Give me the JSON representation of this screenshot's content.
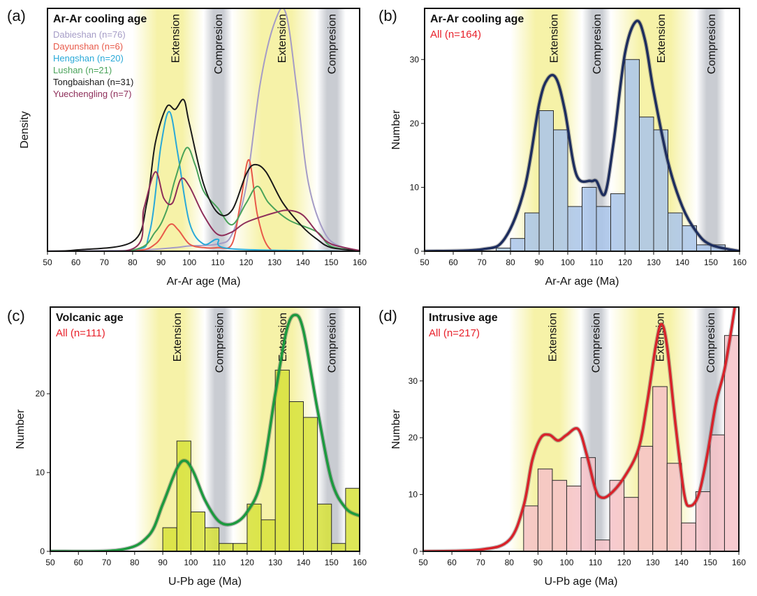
{
  "chart_data": [
    {
      "panel": "(a)",
      "type": "line",
      "title": "Ar-Ar cooling age",
      "xlabel": "Ar-Ar age (Ma)",
      "ylabel": "Density",
      "xlim": [
        50,
        160
      ],
      "xticks": [
        "50",
        "60",
        "70",
        "80",
        "90",
        "100",
        "110",
        "120",
        "130",
        "140",
        "150",
        "160"
      ],
      "yticks": [],
      "bands": [
        {
          "label": "Extension",
          "from": 80,
          "to": 105,
          "color": "#f6f2a8"
        },
        {
          "label": "Compresion",
          "from": 105,
          "to": 115,
          "color": "#c9ccd2"
        },
        {
          "label": "Extension",
          "from": 115,
          "to": 145,
          "color": "#f6f2a8"
        },
        {
          "label": "Compresion",
          "from": 145,
          "to": 155,
          "color": "#c9ccd2"
        }
      ],
      "legend": [
        {
          "label": "Dabieshan (n=76)",
          "color": "#a59cc6"
        },
        {
          "label": "Dayunshan (n=6)",
          "color": "#e85a4a"
        },
        {
          "label": "Hengshan (n=20)",
          "color": "#29a9d8"
        },
        {
          "label": "Lushan (n=21)",
          "color": "#4aa35a"
        },
        {
          "label": "Tongbaishan (n=31)",
          "color": "#1a1a1a"
        },
        {
          "label": "Yuechengling (n=7)",
          "color": "#8e2e5a"
        }
      ],
      "series": [
        {
          "name": "Dabieshan (n=76)",
          "color": "#a59cc6",
          "x": [
            50,
            70,
            85,
            95,
            100,
            110,
            115,
            120,
            125,
            130,
            134,
            138,
            142,
            148,
            155,
            160
          ],
          "y": [
            0.1,
            0.2,
            0.6,
            1.5,
            2.2,
            3.0,
            7.0,
            27,
            70,
            95,
            99,
            66,
            28,
            7,
            1.2,
            0.2
          ]
        },
        {
          "name": "Dayunshan (n=6)",
          "color": "#e85a4a",
          "x": [
            50,
            80,
            88,
            93,
            96,
            100,
            105,
            110,
            115,
            118,
            121,
            124,
            128,
            135,
            160
          ],
          "y": [
            0,
            0.2,
            3,
            11,
            9,
            3,
            1.5,
            1.5,
            3,
            20,
            38,
            15,
            1.5,
            0.3,
            0
          ]
        },
        {
          "name": "Hengshan (n=20)",
          "color": "#29a9d8",
          "x": [
            50,
            80,
            86,
            90,
            93,
            96,
            100,
            105,
            110,
            115,
            160
          ],
          "y": [
            0,
            0.5,
            8,
            44,
            58,
            40,
            12,
            3,
            5,
            1,
            0
          ]
        },
        {
          "name": "Lushan (n=21)",
          "color": "#4aa35a",
          "x": [
            50,
            80,
            88,
            92,
            95,
            99,
            102,
            105,
            110,
            115,
            120,
            124,
            128,
            135,
            145,
            150,
            160
          ],
          "y": [
            0,
            0.5,
            8,
            17,
            30,
            43,
            36,
            25,
            18,
            11,
            20,
            27,
            20,
            13,
            8,
            2,
            0.2
          ]
        },
        {
          "name": "Tongbaishan (n=31)",
          "color": "#1a1a1a",
          "x": [
            50,
            60,
            80,
            85,
            88,
            92,
            95,
            98,
            100,
            105,
            110,
            115,
            120,
            123,
            127,
            133,
            140,
            145,
            150,
            160
          ],
          "y": [
            0,
            0.5,
            4,
            20,
            45,
            60,
            59,
            63,
            53,
            28,
            16,
            17,
            32,
            36,
            33,
            20,
            10,
            5,
            1.5,
            0.2
          ]
        },
        {
          "name": "Yuechengling (n=7)",
          "color": "#8e2e5a",
          "x": [
            50,
            80,
            84,
            88,
            91,
            94,
            97,
            100,
            105,
            110,
            115,
            120,
            130,
            135,
            140,
            145,
            150,
            160
          ],
          "y": [
            0,
            1,
            18,
            33,
            22,
            20,
            30,
            27,
            15,
            7,
            8,
            12,
            16,
            17,
            15,
            8,
            3,
            0.3
          ]
        }
      ]
    },
    {
      "panel": "(b)",
      "type": "bar",
      "title": "Ar-Ar cooling age",
      "subtitle": "All (n=164)",
      "xlabel": "Ar-Ar age (Ma)",
      "ylabel": "Number",
      "xlim": [
        50,
        160
      ],
      "ylim": [
        0,
        38
      ],
      "xticks": [
        "50",
        "60",
        "70",
        "80",
        "90",
        "100",
        "110",
        "120",
        "130",
        "140",
        "150",
        "160"
      ],
      "yticks": [
        "0",
        "10",
        "20",
        "30"
      ],
      "bands": [
        {
          "label": "Extension",
          "from": 80,
          "to": 105,
          "color": "#f6f2a8"
        },
        {
          "label": "Compresion",
          "from": 105,
          "to": 115,
          "color": "#c9ccd2"
        },
        {
          "label": "Extension",
          "from": 115,
          "to": 145,
          "color": "#f6f2a8"
        },
        {
          "label": "Compresion",
          "from": 145,
          "to": 155,
          "color": "#c9ccd2"
        }
      ],
      "bar_color": "#a9c4ea",
      "line_color": "#1d2d5e",
      "bins": [
        {
          "from": 75,
          "to": 80,
          "value": 0.5
        },
        {
          "from": 80,
          "to": 85,
          "value": 2
        },
        {
          "from": 85,
          "to": 90,
          "value": 6
        },
        {
          "from": 90,
          "to": 95,
          "value": 22
        },
        {
          "from": 95,
          "to": 100,
          "value": 19
        },
        {
          "from": 100,
          "to": 105,
          "value": 7
        },
        {
          "from": 105,
          "to": 110,
          "value": 10
        },
        {
          "from": 110,
          "to": 115,
          "value": 7
        },
        {
          "from": 115,
          "to": 120,
          "value": 9
        },
        {
          "from": 120,
          "to": 125,
          "value": 30
        },
        {
          "from": 125,
          "to": 130,
          "value": 21
        },
        {
          "from": 130,
          "to": 135,
          "value": 19
        },
        {
          "from": 135,
          "to": 140,
          "value": 6
        },
        {
          "from": 140,
          "to": 145,
          "value": 4
        },
        {
          "from": 145,
          "to": 150,
          "value": 1
        },
        {
          "from": 150,
          "to": 155,
          "value": 1
        }
      ],
      "curve": {
        "x": [
          50,
          70,
          78,
          85,
          90,
          93,
          96,
          99,
          103,
          108,
          110,
          113,
          116,
          120,
          124,
          127,
          130,
          135,
          140,
          145,
          150,
          160
        ],
        "y": [
          0,
          0.3,
          2,
          10,
          23,
          27,
          27,
          22,
          12,
          11,
          11,
          9,
          17,
          31,
          36,
          33,
          25,
          14,
          7,
          3,
          1,
          0
        ]
      }
    },
    {
      "panel": "(c)",
      "type": "bar",
      "title": "Volcanic age",
      "subtitle": "All (n=111)",
      "xlabel": "U-Pb age (Ma)",
      "ylabel": "Number",
      "xlim": [
        50,
        160
      ],
      "ylim": [
        0,
        31
      ],
      "xticks": [
        "50",
        "60",
        "70",
        "80",
        "90",
        "100",
        "110",
        "120",
        "130",
        "140",
        "150",
        "160"
      ],
      "yticks": [
        "0",
        "10",
        "20"
      ],
      "bands": [
        {
          "label": "Extension",
          "from": 80,
          "to": 105,
          "color": "#f6f2a8"
        },
        {
          "label": "Compresion",
          "from": 105,
          "to": 115,
          "color": "#c9ccd2"
        },
        {
          "label": "Extension",
          "from": 115,
          "to": 145,
          "color": "#f6f2a8"
        },
        {
          "label": "Compresion",
          "from": 145,
          "to": 155,
          "color": "#c9ccd2"
        }
      ],
      "bar_color": "#d7e23a",
      "line_color": "#1c9a3e",
      "bins": [
        {
          "from": 90,
          "to": 95,
          "value": 3
        },
        {
          "from": 95,
          "to": 100,
          "value": 14
        },
        {
          "from": 100,
          "to": 105,
          "value": 5
        },
        {
          "from": 105,
          "to": 110,
          "value": 3
        },
        {
          "from": 110,
          "to": 115,
          "value": 1
        },
        {
          "from": 115,
          "to": 120,
          "value": 1
        },
        {
          "from": 120,
          "to": 125,
          "value": 6
        },
        {
          "from": 125,
          "to": 130,
          "value": 4
        },
        {
          "from": 130,
          "to": 135,
          "value": 23
        },
        {
          "from": 135,
          "to": 140,
          "value": 19
        },
        {
          "from": 140,
          "to": 145,
          "value": 17
        },
        {
          "from": 145,
          "to": 150,
          "value": 6
        },
        {
          "from": 150,
          "to": 155,
          "value": 1
        },
        {
          "from": 155,
          "to": 160,
          "value": 8
        }
      ],
      "curve": {
        "x": [
          50,
          75,
          85,
          90,
          95,
          98,
          101,
          105,
          110,
          115,
          120,
          125,
          130,
          134,
          137,
          140,
          145,
          150,
          155,
          160
        ],
        "y": [
          0,
          0.2,
          2,
          6,
          10.5,
          11.5,
          10,
          6.5,
          3.8,
          3.5,
          5,
          9,
          20,
          28,
          30,
          28,
          18,
          9,
          5.5,
          4.5
        ]
      }
    },
    {
      "panel": "(d)",
      "type": "bar",
      "title": "Intrusive age",
      "subtitle": "All (n=217)",
      "xlabel": "U-Pb age (Ma)",
      "ylabel": "Number",
      "xlim": [
        50,
        160
      ],
      "ylim": [
        0,
        43
      ],
      "xticks": [
        "50",
        "60",
        "70",
        "80",
        "90",
        "100",
        "110",
        "120",
        "130",
        "140",
        "150",
        "160"
      ],
      "yticks": [
        "0",
        "10",
        "20",
        "30"
      ],
      "bands": [
        {
          "label": "Extension",
          "from": 80,
          "to": 105,
          "color": "#f6f2a8"
        },
        {
          "label": "Compresion",
          "from": 105,
          "to": 115,
          "color": "#c9ccd2"
        },
        {
          "label": "Extension",
          "from": 115,
          "to": 145,
          "color": "#f6f2a8"
        },
        {
          "label": "Compresion",
          "from": 145,
          "to": 155,
          "color": "#c9ccd2"
        }
      ],
      "bar_color": "#f6c2c8",
      "line_color": "#d8222a",
      "bins": [
        {
          "from": 85,
          "to": 90,
          "value": 8
        },
        {
          "from": 90,
          "to": 95,
          "value": 14.5
        },
        {
          "from": 95,
          "to": 100,
          "value": 12.5
        },
        {
          "from": 100,
          "to": 105,
          "value": 11.5
        },
        {
          "from": 105,
          "to": 110,
          "value": 16.5
        },
        {
          "from": 110,
          "to": 115,
          "value": 2
        },
        {
          "from": 115,
          "to": 120,
          "value": 12.5
        },
        {
          "from": 120,
          "to": 125,
          "value": 9.5
        },
        {
          "from": 125,
          "to": 130,
          "value": 18.5
        },
        {
          "from": 130,
          "to": 135,
          "value": 29
        },
        {
          "from": 135,
          "to": 140,
          "value": 15.5
        },
        {
          "from": 140,
          "to": 145,
          "value": 5
        },
        {
          "from": 145,
          "to": 150,
          "value": 10.5
        },
        {
          "from": 150,
          "to": 155,
          "value": 20.5
        },
        {
          "from": 155,
          "to": 160,
          "value": 38
        }
      ],
      "curve": {
        "x": [
          50,
          70,
          80,
          85,
          88,
          91,
          94,
          97,
          100,
          104,
          107,
          110,
          112,
          115,
          120,
          125,
          128,
          131,
          133,
          135,
          138,
          141,
          143,
          146,
          149,
          152,
          155,
          158,
          160
        ],
        "y": [
          0,
          0.3,
          2,
          8,
          16,
          20,
          20.5,
          19.5,
          20.5,
          21.5,
          17,
          11,
          9.5,
          10,
          13,
          18,
          26,
          36,
          40,
          36,
          22,
          10,
          8,
          10,
          17,
          26,
          32,
          41,
          48
        ]
      }
    }
  ]
}
